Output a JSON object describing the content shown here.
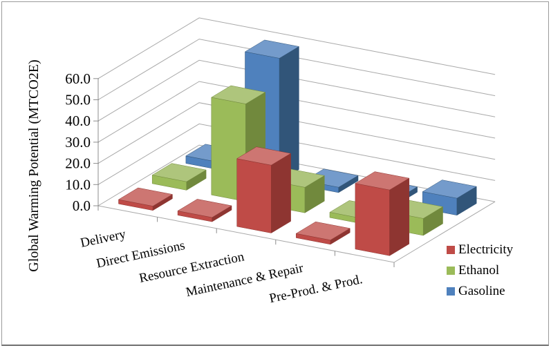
{
  "chart_data": {
    "type": "bar",
    "subtype": "3d-column",
    "title": "",
    "xlabel": "",
    "ylabel": "Global Warming Potential (MTCO2E)",
    "ylim": [
      0,
      60
    ],
    "ytick_step": 10,
    "ytick_labels": [
      "0.0",
      "10.0",
      "20.0",
      "30.0",
      "40.0",
      "50.0",
      "60.0"
    ],
    "grid": true,
    "legend_position": "right",
    "background": "#FFFFFF",
    "gridline_color": "#A8A8A8",
    "axis_color": "#8C8C8C",
    "categories": [
      "Delivery",
      "Direct Emissions",
      "Resource Extraction",
      "Maintenance & Repair",
      "Pre-Prod. & Prod."
    ],
    "series": [
      {
        "name": "Electricity",
        "color": "#BF4B47",
        "color_top": "#CD7672",
        "color_side": "#8E3531",
        "values": [
          2,
          2,
          32,
          2,
          31
        ]
      },
      {
        "name": "Ethanol",
        "color": "#9BBB59",
        "color_top": "#AEC57C",
        "color_side": "#71893D",
        "values": [
          4,
          46,
          12,
          2.5,
          8
        ]
      },
      {
        "name": "Gasoline",
        "color": "#4F81BD",
        "color_top": "#749BCB",
        "color_side": "#315579",
        "values": [
          3.5,
          58,
          2.5,
          2.5,
          8
        ]
      }
    ]
  }
}
